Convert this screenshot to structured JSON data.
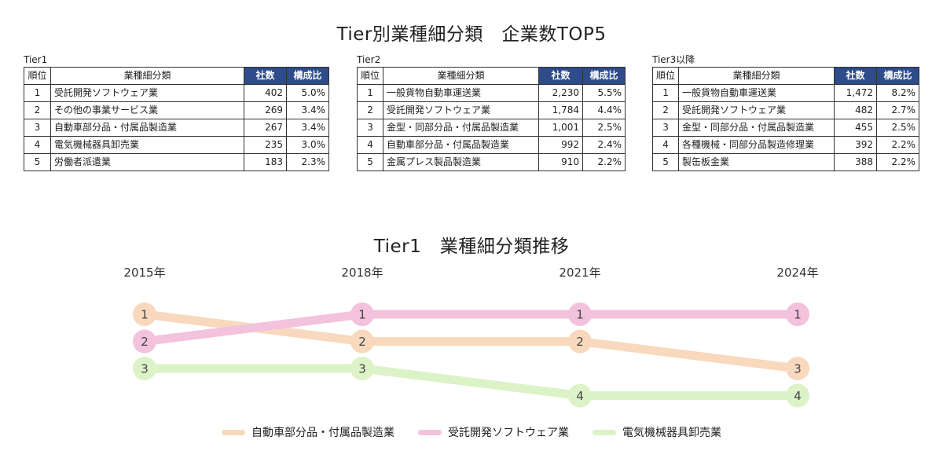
{
  "title": "Tier別業種細分類　企業数TOP5",
  "tables": [
    {
      "name": "Tier1",
      "headers": {
        "rank": "順位",
        "industry": "業種細分類",
        "count": "社数",
        "ratio": "構成比"
      },
      "rows": [
        {
          "rank": "1",
          "industry": "受託開発ソフトウェア業",
          "count": "402",
          "ratio": "5.0%"
        },
        {
          "rank": "2",
          "industry": "その他の事業サービス業",
          "count": "269",
          "ratio": "3.4%"
        },
        {
          "rank": "3",
          "industry": "自動車部分品・付属品製造業",
          "count": "267",
          "ratio": "3.4%"
        },
        {
          "rank": "4",
          "industry": "電気機械器具卸売業",
          "count": "235",
          "ratio": "3.0%"
        },
        {
          "rank": "5",
          "industry": "労働者派遣業",
          "count": "183",
          "ratio": "2.3%"
        }
      ]
    },
    {
      "name": "Tier2",
      "headers": {
        "rank": "順位",
        "industry": "業種細分類",
        "count": "社数",
        "ratio": "構成比"
      },
      "rows": [
        {
          "rank": "1",
          "industry": "一般貨物自動車運送業",
          "count": "2,230",
          "ratio": "5.5%"
        },
        {
          "rank": "2",
          "industry": "受託開発ソフトウェア業",
          "count": "1,784",
          "ratio": "4.4%"
        },
        {
          "rank": "3",
          "industry": "金型・同部分品・付属品製造業",
          "count": "1,001",
          "ratio": "2.5%"
        },
        {
          "rank": "4",
          "industry": "自動車部分品・付属品製造業",
          "count": "992",
          "ratio": "2.4%"
        },
        {
          "rank": "5",
          "industry": "金属プレス製品製造業",
          "count": "910",
          "ratio": "2.2%"
        }
      ]
    },
    {
      "name": "Tier3以降",
      "headers": {
        "rank": "順位",
        "industry": "業種細分類",
        "count": "社数",
        "ratio": "構成比"
      },
      "rows": [
        {
          "rank": "1",
          "industry": "一般貨物自動車運送業",
          "count": "1,472",
          "ratio": "8.2%"
        },
        {
          "rank": "2",
          "industry": "受託開発ソフトウェア業",
          "count": "482",
          "ratio": "2.7%"
        },
        {
          "rank": "3",
          "industry": "金型・同部分品・付属品製造業",
          "count": "455",
          "ratio": "2.5%"
        },
        {
          "rank": "4",
          "industry": "各種機械・同部分品製造修理業",
          "count": "392",
          "ratio": "2.2%"
        },
        {
          "rank": "5",
          "industry": "製缶板金業",
          "count": "388",
          "ratio": "2.2%"
        }
      ]
    }
  ],
  "header_colors": {
    "dark": "#2e4b8a"
  },
  "chart_data": {
    "type": "line",
    "title": "Tier1　業種細分類推移",
    "categories": [
      "2015年",
      "2018年",
      "2021年",
      "2024年"
    ],
    "ylabel": "",
    "y_inverted": true,
    "ylim": [
      1,
      4
    ],
    "grid": false,
    "legend_position": "bottom",
    "series": [
      {
        "name": "自動車部分品・付属品製造業",
        "values": [
          1,
          2,
          2,
          3
        ],
        "color": "#f8d9bd"
      },
      {
        "name": "受託開発ソフトウェア業",
        "values": [
          2,
          1,
          1,
          1
        ],
        "color": "#f3c2dc"
      },
      {
        "name": "電気機械器具卸売業",
        "values": [
          3,
          3,
          4,
          4
        ],
        "color": "#dcf2c7"
      }
    ]
  }
}
